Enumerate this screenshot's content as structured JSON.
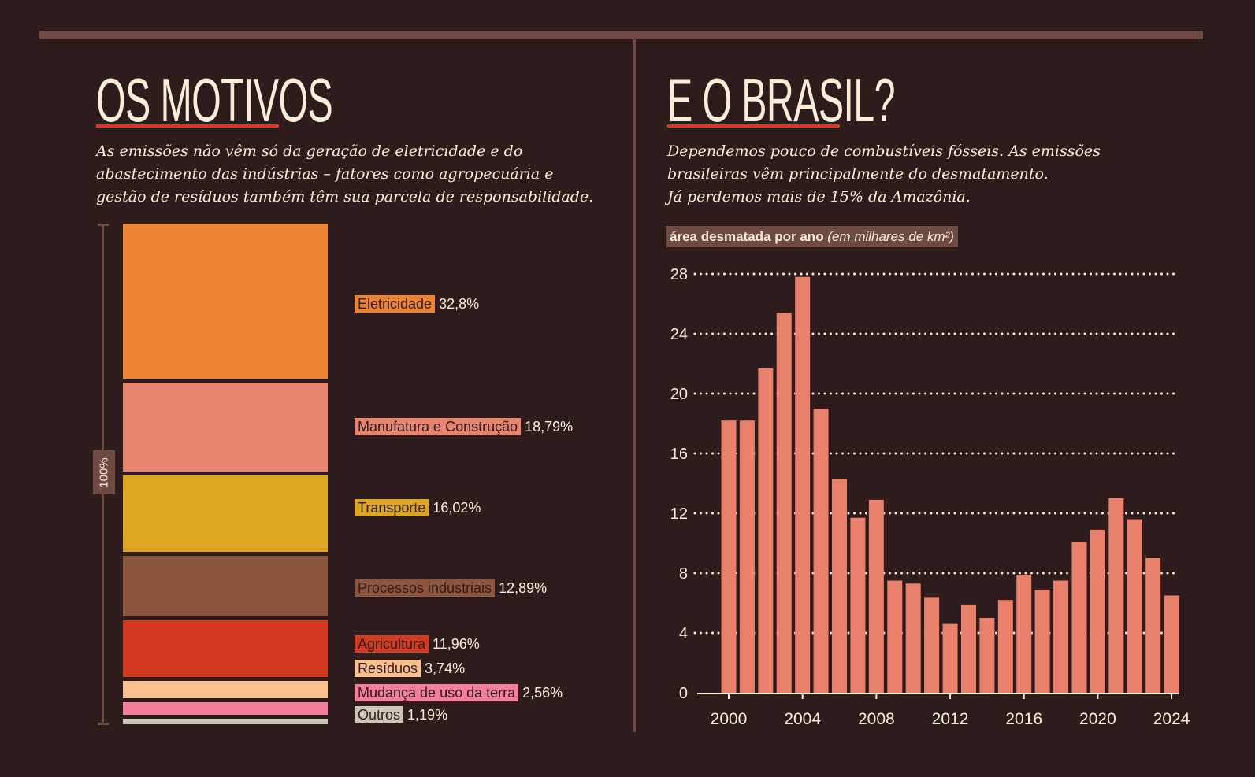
{
  "left": {
    "title": "OS MOTIVOS",
    "subtitle": [
      "As emissões não vêm só da geração de eletricidade e do",
      "abastecimento das indústrias – fatores como agropecuária e",
      "gestão de resíduos também têm sua parcela de responsabilidade."
    ],
    "total_label": "100%"
  },
  "right": {
    "title": "E O BRASIL?",
    "subtitle": [
      "Dependemos pouco de combustíveis fósseis. As emissões",
      "brasileiras vêm principalmente do desmatamento.",
      "Já perdemos mais de 15% da Amazônia."
    ],
    "chart_label_bold": "área desmatada por ano",
    "chart_label_italic": "(em milhares de km²)"
  },
  "chart_data": [
    {
      "type": "bar",
      "stacked": true,
      "ylabel": "100%",
      "categories": [
        "Eletricidade",
        "Manufatura e Construção",
        "Transporte",
        "Processos industriais",
        "Agricultura",
        "Resíduos",
        "Mudança de uso da terra",
        "Outros"
      ],
      "labels": [
        "32,8%",
        "18,79%",
        "16,02%",
        "12,89%",
        "11,96%",
        "3,74%",
        "2,56%",
        "1,19%"
      ],
      "values": [
        32.8,
        18.79,
        16.02,
        12.89,
        11.96,
        3.74,
        2.56,
        1.19
      ],
      "colors": [
        "#ee8330",
        "#e8836e",
        "#dea520",
        "#8b543c",
        "#d23a22",
        "#fcc08e",
        "#f27e9a",
        "#cdc5b6"
      ]
    },
    {
      "type": "bar",
      "title": "área desmatada por ano (em milhares de km²)",
      "x": [
        2000,
        2001,
        2002,
        2003,
        2004,
        2005,
        2006,
        2007,
        2008,
        2009,
        2010,
        2011,
        2012,
        2013,
        2014,
        2015,
        2016,
        2017,
        2018,
        2019,
        2020,
        2021,
        2022,
        2023,
        2024
      ],
      "values": [
        18.2,
        18.2,
        21.7,
        25.4,
        27.8,
        19.0,
        14.3,
        11.7,
        12.9,
        7.5,
        7.3,
        6.4,
        4.6,
        5.9,
        5.0,
        6.2,
        7.9,
        6.9,
        7.5,
        10.1,
        10.9,
        13.0,
        11.6,
        9.0,
        6.5
      ],
      "xticks": [
        "2000",
        "2004",
        "2008",
        "2012",
        "2016",
        "2020",
        "2024"
      ],
      "yticks": [
        "0",
        "4",
        "8",
        "12",
        "16",
        "20",
        "24",
        "28"
      ],
      "ylim": [
        0,
        28
      ],
      "grid": "dotted horizontal",
      "bar_color": "#e8806c"
    }
  ]
}
